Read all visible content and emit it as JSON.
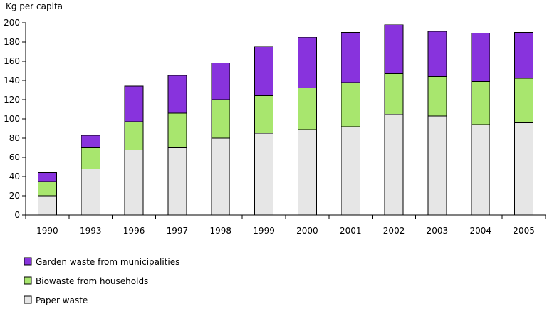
{
  "chart_data": {
    "type": "bar",
    "stacked": true,
    "ylabel": "Kg per capita",
    "ylim": [
      0,
      200
    ],
    "yticks": [
      0,
      20,
      40,
      60,
      80,
      100,
      120,
      140,
      160,
      180,
      200
    ],
    "categories": [
      "1990",
      "1993",
      "1996",
      "1997",
      "1998",
      "1999",
      "2000",
      "2001",
      "2002",
      "2003",
      "2004",
      "2005"
    ],
    "series": [
      {
        "name": "Paper waste",
        "color": "#e6e6e6",
        "values": [
          20,
          48,
          68,
          70,
          80,
          85,
          89,
          92,
          105,
          103,
          94,
          96
        ]
      },
      {
        "name": "Biowaste from households",
        "color": "#a8e66e",
        "values": [
          15,
          22,
          29,
          36,
          40,
          39,
          43,
          46,
          42,
          41,
          45,
          46
        ]
      },
      {
        "name": "Garden waste from municipalities",
        "color": "#8833dd",
        "values": [
          9,
          13,
          37,
          39,
          38,
          51,
          53,
          52,
          51,
          47,
          50,
          48
        ]
      }
    ],
    "legend": {
      "position": "bottom-left",
      "order": [
        "Garden waste from municipalities",
        "Biowaste from households",
        "Paper waste"
      ]
    }
  }
}
